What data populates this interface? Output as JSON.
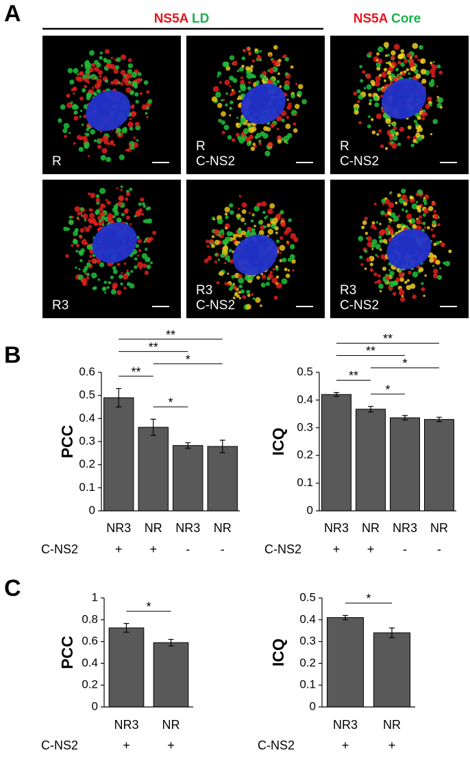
{
  "panel_labels": [
    "A",
    "B",
    "C"
  ],
  "panel_a": {
    "header_left": [
      {
        "text": "NS5A",
        "color": "#e8141c"
      },
      {
        "text": "LD",
        "color": "#19b04b"
      }
    ],
    "header_right": [
      {
        "text": "NS5A",
        "color": "#e8141c"
      },
      {
        "text": "Core",
        "color": "#19b04b"
      }
    ],
    "images": [
      {
        "labels": [
          "R"
        ]
      },
      {
        "labels": [
          "R",
          "C-NS2"
        ]
      },
      {
        "labels": [
          "R",
          "C-NS2"
        ]
      },
      {
        "labels": [
          "R3"
        ]
      },
      {
        "labels": [
          "R3",
          "C-NS2"
        ]
      },
      {
        "labels": [
          "R3",
          "C-NS2"
        ]
      }
    ]
  },
  "chart_data": [
    {
      "type": "bar",
      "ylabel": "PCC",
      "categories": [
        "NR3",
        "NR",
        "NR3",
        "NR"
      ],
      "row_label": "C-NS2",
      "row_values": [
        "+",
        "+",
        "-",
        "-"
      ],
      "values": [
        0.49,
        0.362,
        0.283,
        0.279
      ],
      "errors": [
        0.04,
        0.035,
        0.012,
        0.027
      ],
      "color": "#595959",
      "ylim": [
        0,
        0.6
      ],
      "yticks": [
        0,
        0.1,
        0.2,
        0.3,
        0.4,
        0.5,
        0.6
      ],
      "comparisons": [
        {
          "between": [
            0,
            1
          ],
          "label": "**"
        },
        {
          "between": [
            0,
            2
          ],
          "label": "**"
        },
        {
          "between": [
            0,
            3
          ],
          "label": "**"
        },
        {
          "between": [
            1,
            2
          ],
          "label": "*"
        },
        {
          "between": [
            1,
            3
          ],
          "label": "*"
        }
      ]
    },
    {
      "type": "bar",
      "ylabel": "ICQ",
      "categories": [
        "NR3",
        "NR",
        "NR3",
        "NR"
      ],
      "row_label": "C-NS2",
      "row_values": [
        "+",
        "+",
        "-",
        "-"
      ],
      "values": [
        0.42,
        0.367,
        0.336,
        0.33
      ],
      "errors": [
        0.007,
        0.01,
        0.008,
        0.008
      ],
      "color": "#595959",
      "ylim": [
        0,
        0.5
      ],
      "yticks": [
        0,
        0.1,
        0.2,
        0.3,
        0.4,
        0.5
      ],
      "comparisons": [
        {
          "between": [
            0,
            1
          ],
          "label": "**"
        },
        {
          "between": [
            0,
            2
          ],
          "label": "**"
        },
        {
          "between": [
            0,
            3
          ],
          "label": "**"
        },
        {
          "between": [
            1,
            2
          ],
          "label": "*"
        },
        {
          "between": [
            1,
            3
          ],
          "label": "*"
        }
      ]
    },
    {
      "type": "bar",
      "ylabel": "PCC",
      "categories": [
        "NR3",
        "NR"
      ],
      "row_label": "C-NS2",
      "row_values": [
        "+",
        "+"
      ],
      "values": [
        0.725,
        0.59
      ],
      "errors": [
        0.04,
        0.03
      ],
      "color": "#595959",
      "ylim": [
        0,
        1
      ],
      "yticks": [
        0,
        0.2,
        0.4,
        0.6,
        0.8,
        1
      ],
      "comparisons": [
        {
          "between": [
            0,
            1
          ],
          "label": "*"
        }
      ]
    },
    {
      "type": "bar",
      "ylabel": "ICQ",
      "categories": [
        "NR3",
        "NR"
      ],
      "row_label": "C-NS2",
      "row_values": [
        "+",
        "+"
      ],
      "values": [
        0.41,
        0.34
      ],
      "errors": [
        0.01,
        0.022
      ],
      "color": "#595959",
      "ylim": [
        0,
        0.5
      ],
      "yticks": [
        0,
        0.1,
        0.2,
        0.3,
        0.4,
        0.5
      ],
      "comparisons": [
        {
          "between": [
            0,
            1
          ],
          "label": "*"
        }
      ]
    }
  ]
}
